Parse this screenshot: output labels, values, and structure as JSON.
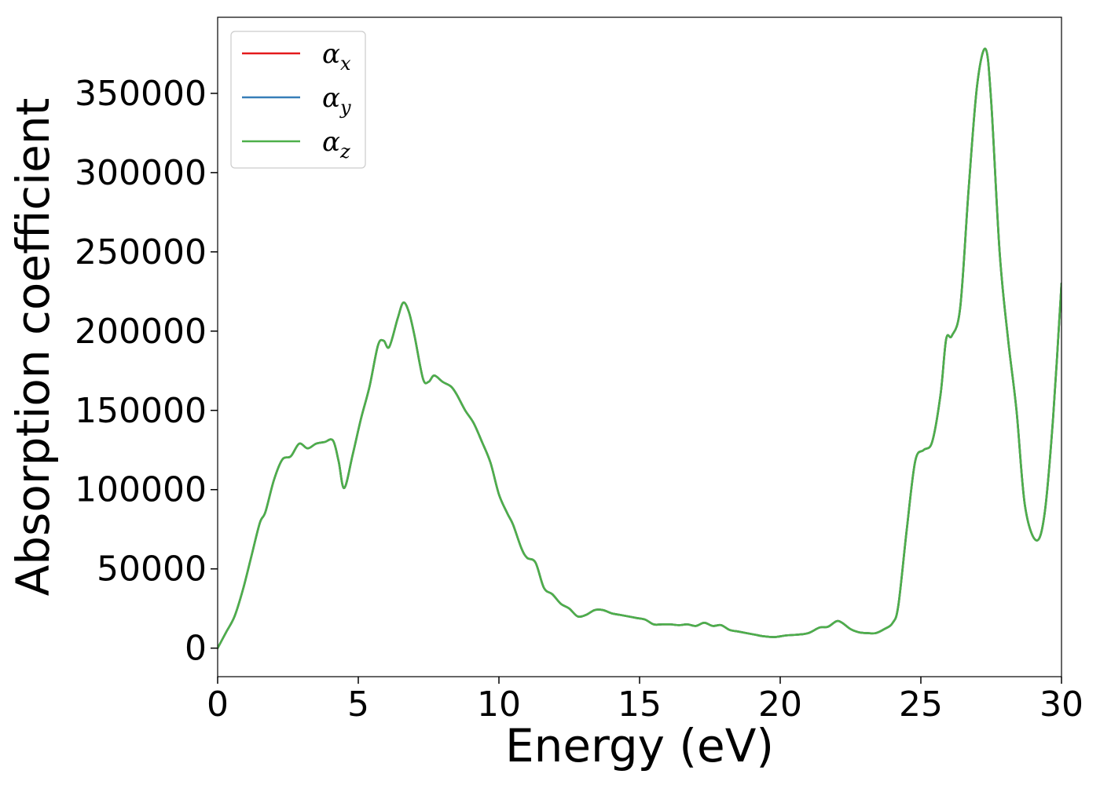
{
  "chart_data": {
    "type": "line",
    "xlabel": "Energy (eV)",
    "ylabel": "Absorption coefficient",
    "xlim": [
      0,
      30
    ],
    "ylim": [
      -18000,
      398000
    ],
    "xticks": [
      0,
      5,
      10,
      15,
      20,
      25,
      30
    ],
    "yticks": [
      0,
      50000,
      100000,
      150000,
      200000,
      250000,
      300000,
      350000
    ],
    "legend_position": "top-left",
    "grid": false,
    "series": [
      {
        "name": "α_x",
        "symbol": "α",
        "subscript": "x",
        "color": "#e41a1c",
        "x": [
          0,
          0.3,
          0.6,
          0.9,
          1.2,
          1.5,
          1.7,
          2.0,
          2.3,
          2.6,
          2.9,
          3.2,
          3.5,
          3.8,
          4.1,
          4.3,
          4.5,
          4.8,
          5.1,
          5.4,
          5.7,
          5.9,
          6.1,
          6.4,
          6.6,
          6.8,
          7.0,
          7.3,
          7.5,
          7.7,
          8.0,
          8.3,
          8.5,
          8.8,
          9.1,
          9.4,
          9.7,
          10.0,
          10.3,
          10.5,
          10.8,
          11.0,
          11.3,
          11.6,
          11.9,
          12.2,
          12.5,
          12.8,
          13.1,
          13.4,
          13.7,
          14.0,
          14.3,
          14.6,
          14.9,
          15.2,
          15.5,
          15.8,
          16.1,
          16.4,
          16.7,
          17.0,
          17.3,
          17.6,
          17.9,
          18.2,
          18.5,
          18.8,
          19.1,
          19.4,
          19.8,
          20.2,
          20.6,
          21.0,
          21.4,
          21.7,
          22.0,
          22.2,
          22.5,
          22.8,
          23.1,
          23.4,
          23.7,
          24.0,
          24.2,
          24.5,
          24.8,
          25.1,
          25.4,
          25.7,
          25.9,
          26.1,
          26.4,
          26.7,
          27.0,
          27.3,
          27.5,
          27.8,
          28.1,
          28.4,
          28.7,
          29.1,
          29.4,
          29.7,
          30.0
        ],
        "y": [
          0,
          10000,
          20000,
          37000,
          58000,
          79000,
          86000,
          106000,
          119000,
          121000,
          129000,
          126000,
          129000,
          130000,
          131000,
          118000,
          101000,
          122000,
          145000,
          165000,
          191000,
          194000,
          190000,
          208000,
          218000,
          212000,
          197000,
          170000,
          168000,
          172000,
          168000,
          165000,
          160000,
          150000,
          142000,
          130000,
          117000,
          97000,
          85000,
          78000,
          63000,
          57000,
          54000,
          38000,
          34000,
          28000,
          25000,
          20000,
          21000,
          24000,
          24000,
          22000,
          21000,
          20000,
          19000,
          18000,
          15000,
          15000,
          15000,
          14500,
          15000,
          14000,
          16000,
          14000,
          14500,
          11500,
          10500,
          9500,
          8500,
          7500,
          7000,
          8000,
          8500,
          9500,
          13000,
          13500,
          17000,
          16000,
          12000,
          10000,
          9500,
          9500,
          12000,
          16000,
          27000,
          75000,
          118000,
          125000,
          130000,
          160000,
          195000,
          197000,
          215000,
          290000,
          355000,
          378000,
          345000,
          250000,
          195000,
          150000,
          90000,
          68000,
          85000,
          145000,
          230000
        ]
      },
      {
        "name": "α_y",
        "symbol": "α",
        "subscript": "y",
        "color": "#377eb8",
        "x": [
          0,
          0.3,
          0.6,
          0.9,
          1.2,
          1.5,
          1.7,
          2.0,
          2.3,
          2.6,
          2.9,
          3.2,
          3.5,
          3.8,
          4.1,
          4.3,
          4.5,
          4.8,
          5.1,
          5.4,
          5.7,
          5.9,
          6.1,
          6.4,
          6.6,
          6.8,
          7.0,
          7.3,
          7.5,
          7.7,
          8.0,
          8.3,
          8.5,
          8.8,
          9.1,
          9.4,
          9.7,
          10.0,
          10.3,
          10.5,
          10.8,
          11.0,
          11.3,
          11.6,
          11.9,
          12.2,
          12.5,
          12.8,
          13.1,
          13.4,
          13.7,
          14.0,
          14.3,
          14.6,
          14.9,
          15.2,
          15.5,
          15.8,
          16.1,
          16.4,
          16.7,
          17.0,
          17.3,
          17.6,
          17.9,
          18.2,
          18.5,
          18.8,
          19.1,
          19.4,
          19.8,
          20.2,
          20.6,
          21.0,
          21.4,
          21.7,
          22.0,
          22.2,
          22.5,
          22.8,
          23.1,
          23.4,
          23.7,
          24.0,
          24.2,
          24.5,
          24.8,
          25.1,
          25.4,
          25.7,
          25.9,
          26.1,
          26.4,
          26.7,
          27.0,
          27.3,
          27.5,
          27.8,
          28.1,
          28.4,
          28.7,
          29.1,
          29.4,
          29.7,
          30.0
        ],
        "y": [
          0,
          10000,
          20000,
          37000,
          58000,
          79000,
          86000,
          106000,
          119000,
          121000,
          129000,
          126000,
          129000,
          130000,
          131000,
          118000,
          101000,
          122000,
          145000,
          165000,
          191000,
          194000,
          190000,
          208000,
          218000,
          212000,
          197000,
          170000,
          168000,
          172000,
          168000,
          165000,
          160000,
          150000,
          142000,
          130000,
          117000,
          97000,
          85000,
          78000,
          63000,
          57000,
          54000,
          38000,
          34000,
          28000,
          25000,
          20000,
          21000,
          24000,
          24000,
          22000,
          21000,
          20000,
          19000,
          18000,
          15000,
          15000,
          15000,
          14500,
          15000,
          14000,
          16000,
          14000,
          14500,
          11500,
          10500,
          9500,
          8500,
          7500,
          7000,
          8000,
          8500,
          9500,
          13000,
          13500,
          17000,
          16000,
          12000,
          10000,
          9500,
          9500,
          12000,
          16000,
          27000,
          75000,
          118000,
          125000,
          130000,
          160000,
          195000,
          197000,
          215000,
          290000,
          355000,
          378000,
          345000,
          250000,
          195000,
          150000,
          90000,
          68000,
          85000,
          145000,
          230000
        ]
      },
      {
        "name": "α_z",
        "symbol": "α",
        "subscript": "z",
        "color": "#4daf4a",
        "x": [
          0,
          0.3,
          0.6,
          0.9,
          1.2,
          1.5,
          1.7,
          2.0,
          2.3,
          2.6,
          2.9,
          3.2,
          3.5,
          3.8,
          4.1,
          4.3,
          4.5,
          4.8,
          5.1,
          5.4,
          5.7,
          5.9,
          6.1,
          6.4,
          6.6,
          6.8,
          7.0,
          7.3,
          7.5,
          7.7,
          8.0,
          8.3,
          8.5,
          8.8,
          9.1,
          9.4,
          9.7,
          10.0,
          10.3,
          10.5,
          10.8,
          11.0,
          11.3,
          11.6,
          11.9,
          12.2,
          12.5,
          12.8,
          13.1,
          13.4,
          13.7,
          14.0,
          14.3,
          14.6,
          14.9,
          15.2,
          15.5,
          15.8,
          16.1,
          16.4,
          16.7,
          17.0,
          17.3,
          17.6,
          17.9,
          18.2,
          18.5,
          18.8,
          19.1,
          19.4,
          19.8,
          20.2,
          20.6,
          21.0,
          21.4,
          21.7,
          22.0,
          22.2,
          22.5,
          22.8,
          23.1,
          23.4,
          23.7,
          24.0,
          24.2,
          24.5,
          24.8,
          25.1,
          25.4,
          25.7,
          25.9,
          26.1,
          26.4,
          26.7,
          27.0,
          27.3,
          27.5,
          27.8,
          28.1,
          28.4,
          28.7,
          29.1,
          29.4,
          29.7,
          30.0
        ],
        "y": [
          0,
          10000,
          20000,
          37000,
          58000,
          79000,
          86000,
          106000,
          119000,
          121000,
          129000,
          126000,
          129000,
          130000,
          131000,
          118000,
          101000,
          122000,
          145000,
          165000,
          191000,
          194000,
          190000,
          208000,
          218000,
          212000,
          197000,
          170000,
          168000,
          172000,
          168000,
          165000,
          160000,
          150000,
          142000,
          130000,
          117000,
          97000,
          85000,
          78000,
          63000,
          57000,
          54000,
          38000,
          34000,
          28000,
          25000,
          20000,
          21000,
          24000,
          24000,
          22000,
          21000,
          20000,
          19000,
          18000,
          15000,
          15000,
          15000,
          14500,
          15000,
          14000,
          16000,
          14000,
          14500,
          11500,
          10500,
          9500,
          8500,
          7500,
          7000,
          8000,
          8500,
          9500,
          13000,
          13500,
          17000,
          16000,
          12000,
          10000,
          9500,
          9500,
          12000,
          16000,
          27000,
          75000,
          118000,
          125000,
          130000,
          160000,
          195000,
          197000,
          215000,
          290000,
          355000,
          378000,
          345000,
          250000,
          195000,
          150000,
          90000,
          68000,
          85000,
          145000,
          230000
        ]
      }
    ]
  }
}
